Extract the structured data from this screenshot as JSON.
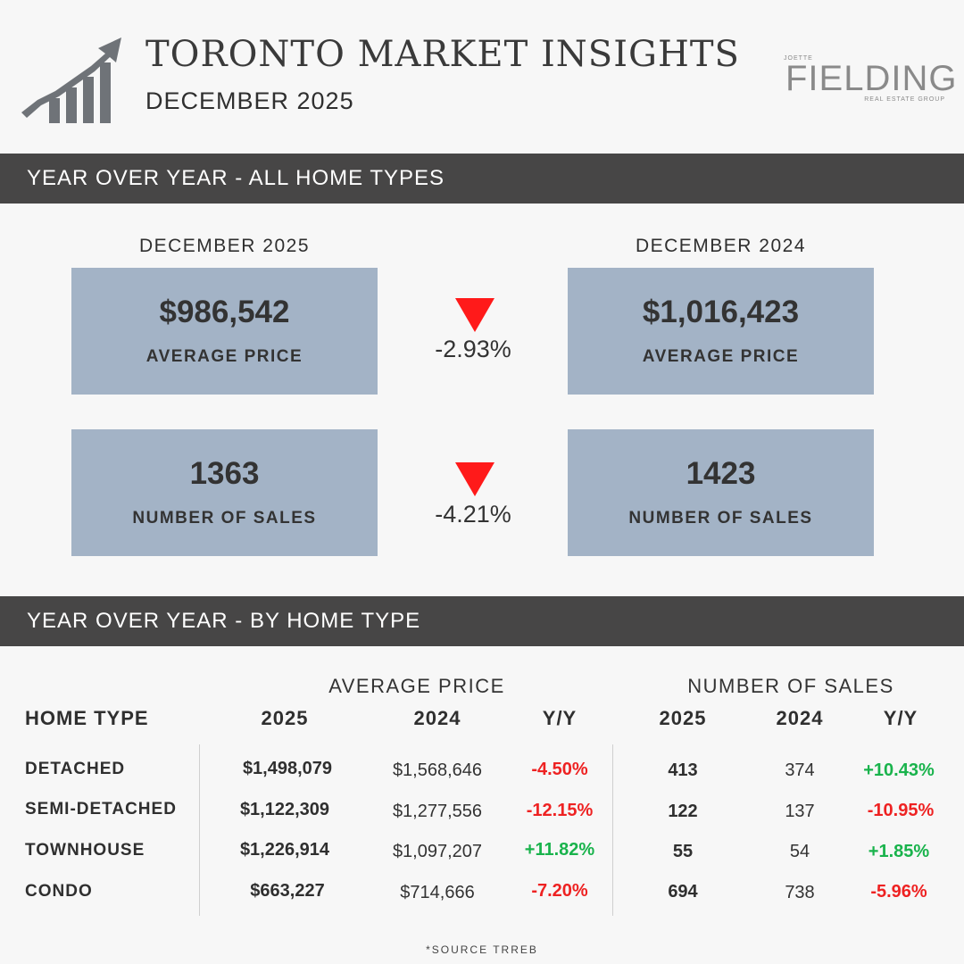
{
  "header": {
    "title": "TORONTO MARKET INSIGHTS",
    "subtitle": "DECEMBER 2025",
    "logo_small": "JOETTE",
    "logo_main": "FIELDING",
    "logo_sub": "REAL ESTATE GROUP"
  },
  "section1": {
    "title": "YEAR OVER YEAR - ALL HOME TYPES",
    "left_label": "DECEMBER  2025",
    "right_label": "DECEMBER  2024",
    "avg_left": "$986,542",
    "avg_right": "$1,016,423",
    "avg_label": "AVERAGE PRICE",
    "avg_change": "-2.93%",
    "sales_left": "1363",
    "sales_right": "1423",
    "sales_label": "NUMBER OF SALES",
    "sales_change": "-4.21%"
  },
  "section2": {
    "title": "YEAR OVER YEAR - BY HOME TYPE",
    "group_price": "AVERAGE PRICE",
    "group_sales": "NUMBER OF SALES",
    "col_type": "HOME TYPE",
    "col_2025": "2025",
    "col_2024": "2024",
    "col_yy": "Y/Y",
    "rows": [
      {
        "type": "DETACHED",
        "p25": "$1,498,079",
        "p24": "$1,568,646",
        "pyy": "-4.50%",
        "s25": "413",
        "s24": "374",
        "syy": "+10.43%"
      },
      {
        "type": "SEMI-DETACHED",
        "p25": "$1,122,309",
        "p24": "$1,277,556",
        "pyy": "-12.15%",
        "s25": "122",
        "s24": "137",
        "syy": "-10.95%"
      },
      {
        "type": "TOWNHOUSE",
        "p25": "$1,226,914",
        "p24": "$1,097,207",
        "pyy": "+11.82%",
        "s25": "55",
        "s24": "54",
        "syy": "+1.85%"
      },
      {
        "type": "CONDO",
        "p25": "$663,227",
        "p24": "$714,666",
        "pyy": "-7.20%",
        "s25": "694",
        "s24": "738",
        "syy": "-5.96%"
      }
    ]
  },
  "footer": {
    "source": "*SOURCE TRREB"
  },
  "colors": {
    "band": "#474646",
    "card": "#a3b3c6",
    "down": "#ff1a1a",
    "negative": "#ee2222",
    "positive": "#19b34c"
  },
  "icons": {
    "header_icon": "rising-bar-chart-icon",
    "down_arrow": "down-triangle-icon"
  }
}
